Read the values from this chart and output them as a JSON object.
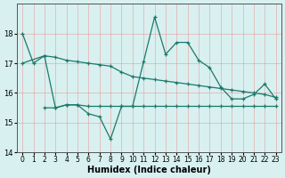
{
  "xlabel": "Humidex (Indice chaleur)",
  "background_color": "#d8f0f0",
  "grid_color": "#f08080",
  "line_color": "#1a7a6a",
  "xlim": [
    -0.5,
    23.5
  ],
  "ylim": [
    14,
    19
  ],
  "yticks": [
    14,
    15,
    16,
    17,
    18
  ],
  "xticks": [
    0,
    1,
    2,
    3,
    4,
    5,
    6,
    7,
    8,
    9,
    10,
    11,
    12,
    13,
    14,
    15,
    16,
    17,
    18,
    19,
    20,
    21,
    22,
    23
  ],
  "line1_x": [
    0,
    1,
    2,
    3,
    4,
    5,
    6,
    7,
    8,
    9,
    10,
    11,
    12,
    13,
    14,
    15,
    16,
    17,
    18,
    19,
    20,
    21,
    22,
    23
  ],
  "line1_y": [
    18.0,
    17.0,
    17.25,
    17.2,
    17.1,
    17.05,
    17.0,
    16.95,
    16.9,
    16.7,
    16.55,
    16.5,
    16.45,
    16.4,
    16.35,
    16.3,
    16.25,
    16.2,
    16.15,
    16.1,
    16.05,
    16.0,
    15.95,
    15.85
  ],
  "line2_x": [
    0,
    2,
    3,
    4,
    5,
    6,
    7,
    8,
    9,
    10,
    11,
    12,
    13,
    14,
    15,
    16,
    17,
    18,
    19,
    20,
    21,
    22,
    23
  ],
  "line2_y": [
    17.0,
    17.25,
    15.5,
    15.6,
    15.6,
    15.3,
    15.2,
    14.45,
    15.55,
    15.55,
    17.05,
    18.55,
    17.3,
    17.7,
    17.7,
    17.1,
    16.85,
    16.2,
    15.8,
    15.8,
    15.95,
    16.3,
    15.8
  ],
  "line3_x": [
    2,
    3,
    4,
    5,
    6,
    7,
    8,
    9,
    10,
    11,
    12,
    13,
    14,
    15,
    16,
    17,
    18,
    19,
    20,
    21,
    22,
    23
  ],
  "line3_y": [
    15.5,
    15.5,
    15.6,
    15.6,
    15.55,
    15.55,
    15.55,
    15.55,
    15.55,
    15.55,
    15.55,
    15.55,
    15.55,
    15.55,
    15.55,
    15.55,
    15.55,
    15.55,
    15.55,
    15.55,
    15.55,
    15.55
  ]
}
